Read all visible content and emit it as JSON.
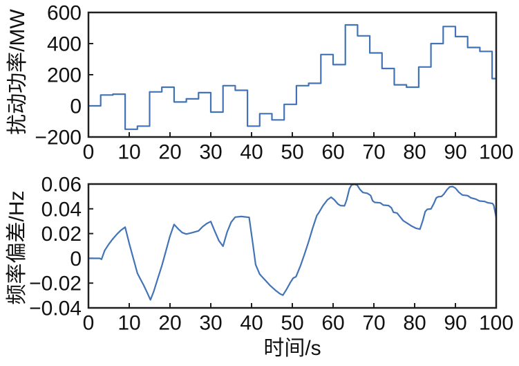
{
  "figure": {
    "background": "#ffffff",
    "line_color": "#4273b6",
    "spine_color": "#1f1f1f",
    "text_color": "#111111"
  },
  "chart_data": [
    {
      "type": "step",
      "title": "",
      "ylabel": "扰动功率/MW",
      "xlabel": "",
      "xlim": [
        0,
        100
      ],
      "ylim": [
        -200,
        600
      ],
      "grid": false,
      "legend": "none",
      "xticks": [
        0,
        10,
        20,
        30,
        40,
        50,
        60,
        70,
        80,
        90,
        100
      ],
      "xtick_labels": [
        "0",
        "10",
        "20",
        "30",
        "40",
        "50",
        "60",
        "70",
        "80",
        "90",
        "100"
      ],
      "yticks": [
        600,
        400,
        200,
        0,
        -200
      ],
      "ytick_labels": [
        "600",
        "400",
        "200",
        "0",
        "−200"
      ],
      "step_edges": [
        0,
        3,
        6,
        9,
        12,
        15,
        18,
        21,
        24,
        27,
        30,
        33,
        36,
        39,
        42,
        45,
        48,
        51,
        54,
        57,
        60,
        63,
        66,
        69,
        72,
        75,
        78,
        81,
        84,
        87,
        90,
        93,
        96,
        99,
        100
      ],
      "step_values": [
        0,
        70,
        75,
        -150,
        -130,
        90,
        120,
        25,
        45,
        85,
        -40,
        130,
        100,
        -130,
        -50,
        -90,
        10,
        130,
        145,
        330,
        265,
        520,
        450,
        340,
        240,
        135,
        120,
        250,
        400,
        510,
        445,
        375,
        350,
        175
      ]
    },
    {
      "type": "line",
      "title": "",
      "ylabel": "频率偏差/Hz",
      "xlabel": "时间/s",
      "xlim": [
        0,
        100
      ],
      "ylim": [
        -0.04,
        0.06
      ],
      "grid": false,
      "legend": "none",
      "xticks": [
        0,
        10,
        20,
        30,
        40,
        50,
        60,
        70,
        80,
        90,
        100
      ],
      "xtick_labels": [
        "0",
        "10",
        "20",
        "30",
        "40",
        "50",
        "60",
        "70",
        "80",
        "90",
        "100"
      ],
      "yticks": [
        0.06,
        0.04,
        0.02,
        0,
        -0.02,
        -0.04
      ],
      "ytick_labels": [
        "0.06",
        "0.04",
        "0.02",
        "0",
        "−0.02",
        "−0.04"
      ],
      "points": [
        [
          0,
          0
        ],
        [
          2.8,
          0
        ],
        [
          3.2,
          -0.0008
        ],
        [
          4,
          0.0065
        ],
        [
          5,
          0.0115
        ],
        [
          6,
          0.0158
        ],
        [
          7,
          0.0196
        ],
        [
          8,
          0.0228
        ],
        [
          9,
          0.0252
        ],
        [
          10,
          0.012
        ],
        [
          11,
          0.0
        ],
        [
          12,
          -0.012
        ],
        [
          12.6,
          -0.0158
        ],
        [
          13.5,
          -0.0215
        ],
        [
          14.3,
          -0.027
        ],
        [
          15.2,
          -0.0335
        ],
        [
          16,
          -0.0268
        ],
        [
          17,
          -0.0163
        ],
        [
          18,
          -0.006
        ],
        [
          19,
          0.006
        ],
        [
          20,
          0.018
        ],
        [
          21,
          0.0274
        ],
        [
          22,
          0.0238
        ],
        [
          23,
          0.0208
        ],
        [
          24,
          0.0196
        ],
        [
          25.5,
          0.0208
        ],
        [
          27,
          0.0222
        ],
        [
          28,
          0.0256
        ],
        [
          29,
          0.0281
        ],
        [
          30,
          0.0297
        ],
        [
          31,
          0.0218
        ],
        [
          32,
          0.0142
        ],
        [
          33,
          0.0098
        ],
        [
          34,
          0.0212
        ],
        [
          35,
          0.0292
        ],
        [
          36,
          0.0333
        ],
        [
          37.5,
          0.0338
        ],
        [
          39.4,
          0.0331
        ],
        [
          40.3,
          0.012
        ],
        [
          41,
          -0.005
        ],
        [
          42,
          -0.0128
        ],
        [
          43,
          -0.0164
        ],
        [
          44.5,
          -0.0218
        ],
        [
          46,
          -0.0262
        ],
        [
          47,
          -0.0287
        ],
        [
          47.7,
          -0.0297
        ],
        [
          48.6,
          -0.025
        ],
        [
          49.5,
          -0.0195
        ],
        [
          50.2,
          -0.016
        ],
        [
          50.9,
          -0.0148
        ],
        [
          52,
          -0.006
        ],
        [
          53,
          0.0035
        ],
        [
          54,
          0.0135
        ],
        [
          55,
          0.0245
        ],
        [
          56,
          0.0345
        ],
        [
          56.5,
          0.0368
        ],
        [
          57.5,
          0.0425
        ],
        [
          58.6,
          0.0472
        ],
        [
          59.5,
          0.0494
        ],
        [
          60.3,
          0.0472
        ],
        [
          61.2,
          0.0438
        ],
        [
          61.8,
          0.0426
        ],
        [
          62.8,
          0.0424
        ],
        [
          63.3,
          0.047
        ],
        [
          64,
          0.0562
        ],
        [
          64.5,
          0.0592
        ],
        [
          65.2,
          0.0598
        ],
        [
          65.9,
          0.0592
        ],
        [
          66.6,
          0.0556
        ],
        [
          67.3,
          0.0532
        ],
        [
          68.4,
          0.0525
        ],
        [
          69.2,
          0.0508
        ],
        [
          69.7,
          0.0465
        ],
        [
          70.2,
          0.0452
        ],
        [
          71.6,
          0.0448
        ],
        [
          72.3,
          0.043
        ],
        [
          73.6,
          0.0426
        ],
        [
          74.3,
          0.0408
        ],
        [
          74.8,
          0.0372
        ],
        [
          75.7,
          0.0366
        ],
        [
          76.3,
          0.034
        ],
        [
          77.2,
          0.0304
        ],
        [
          78.2,
          0.0283
        ],
        [
          79.3,
          0.026
        ],
        [
          80.3,
          0.0243
        ],
        [
          81.3,
          0.0236
        ],
        [
          82,
          0.0305
        ],
        [
          82.6,
          0.0378
        ],
        [
          83.1,
          0.0396
        ],
        [
          84,
          0.0399
        ],
        [
          84.7,
          0.0442
        ],
        [
          85.3,
          0.0488
        ],
        [
          85.8,
          0.0497
        ],
        [
          86.6,
          0.05
        ],
        [
          87.2,
          0.052
        ],
        [
          87.9,
          0.0553
        ],
        [
          88.6,
          0.0577
        ],
        [
          89.3,
          0.058
        ],
        [
          90,
          0.0567
        ],
        [
          90.8,
          0.0535
        ],
        [
          91.7,
          0.0512
        ],
        [
          93,
          0.0506
        ],
        [
          93.8,
          0.0489
        ],
        [
          95,
          0.0478
        ],
        [
          95.9,
          0.0463
        ],
        [
          97.2,
          0.0459
        ],
        [
          97.9,
          0.0449
        ],
        [
          99.1,
          0.0443
        ],
        [
          99.4,
          0.0428
        ],
        [
          100,
          0.033
        ]
      ]
    }
  ]
}
